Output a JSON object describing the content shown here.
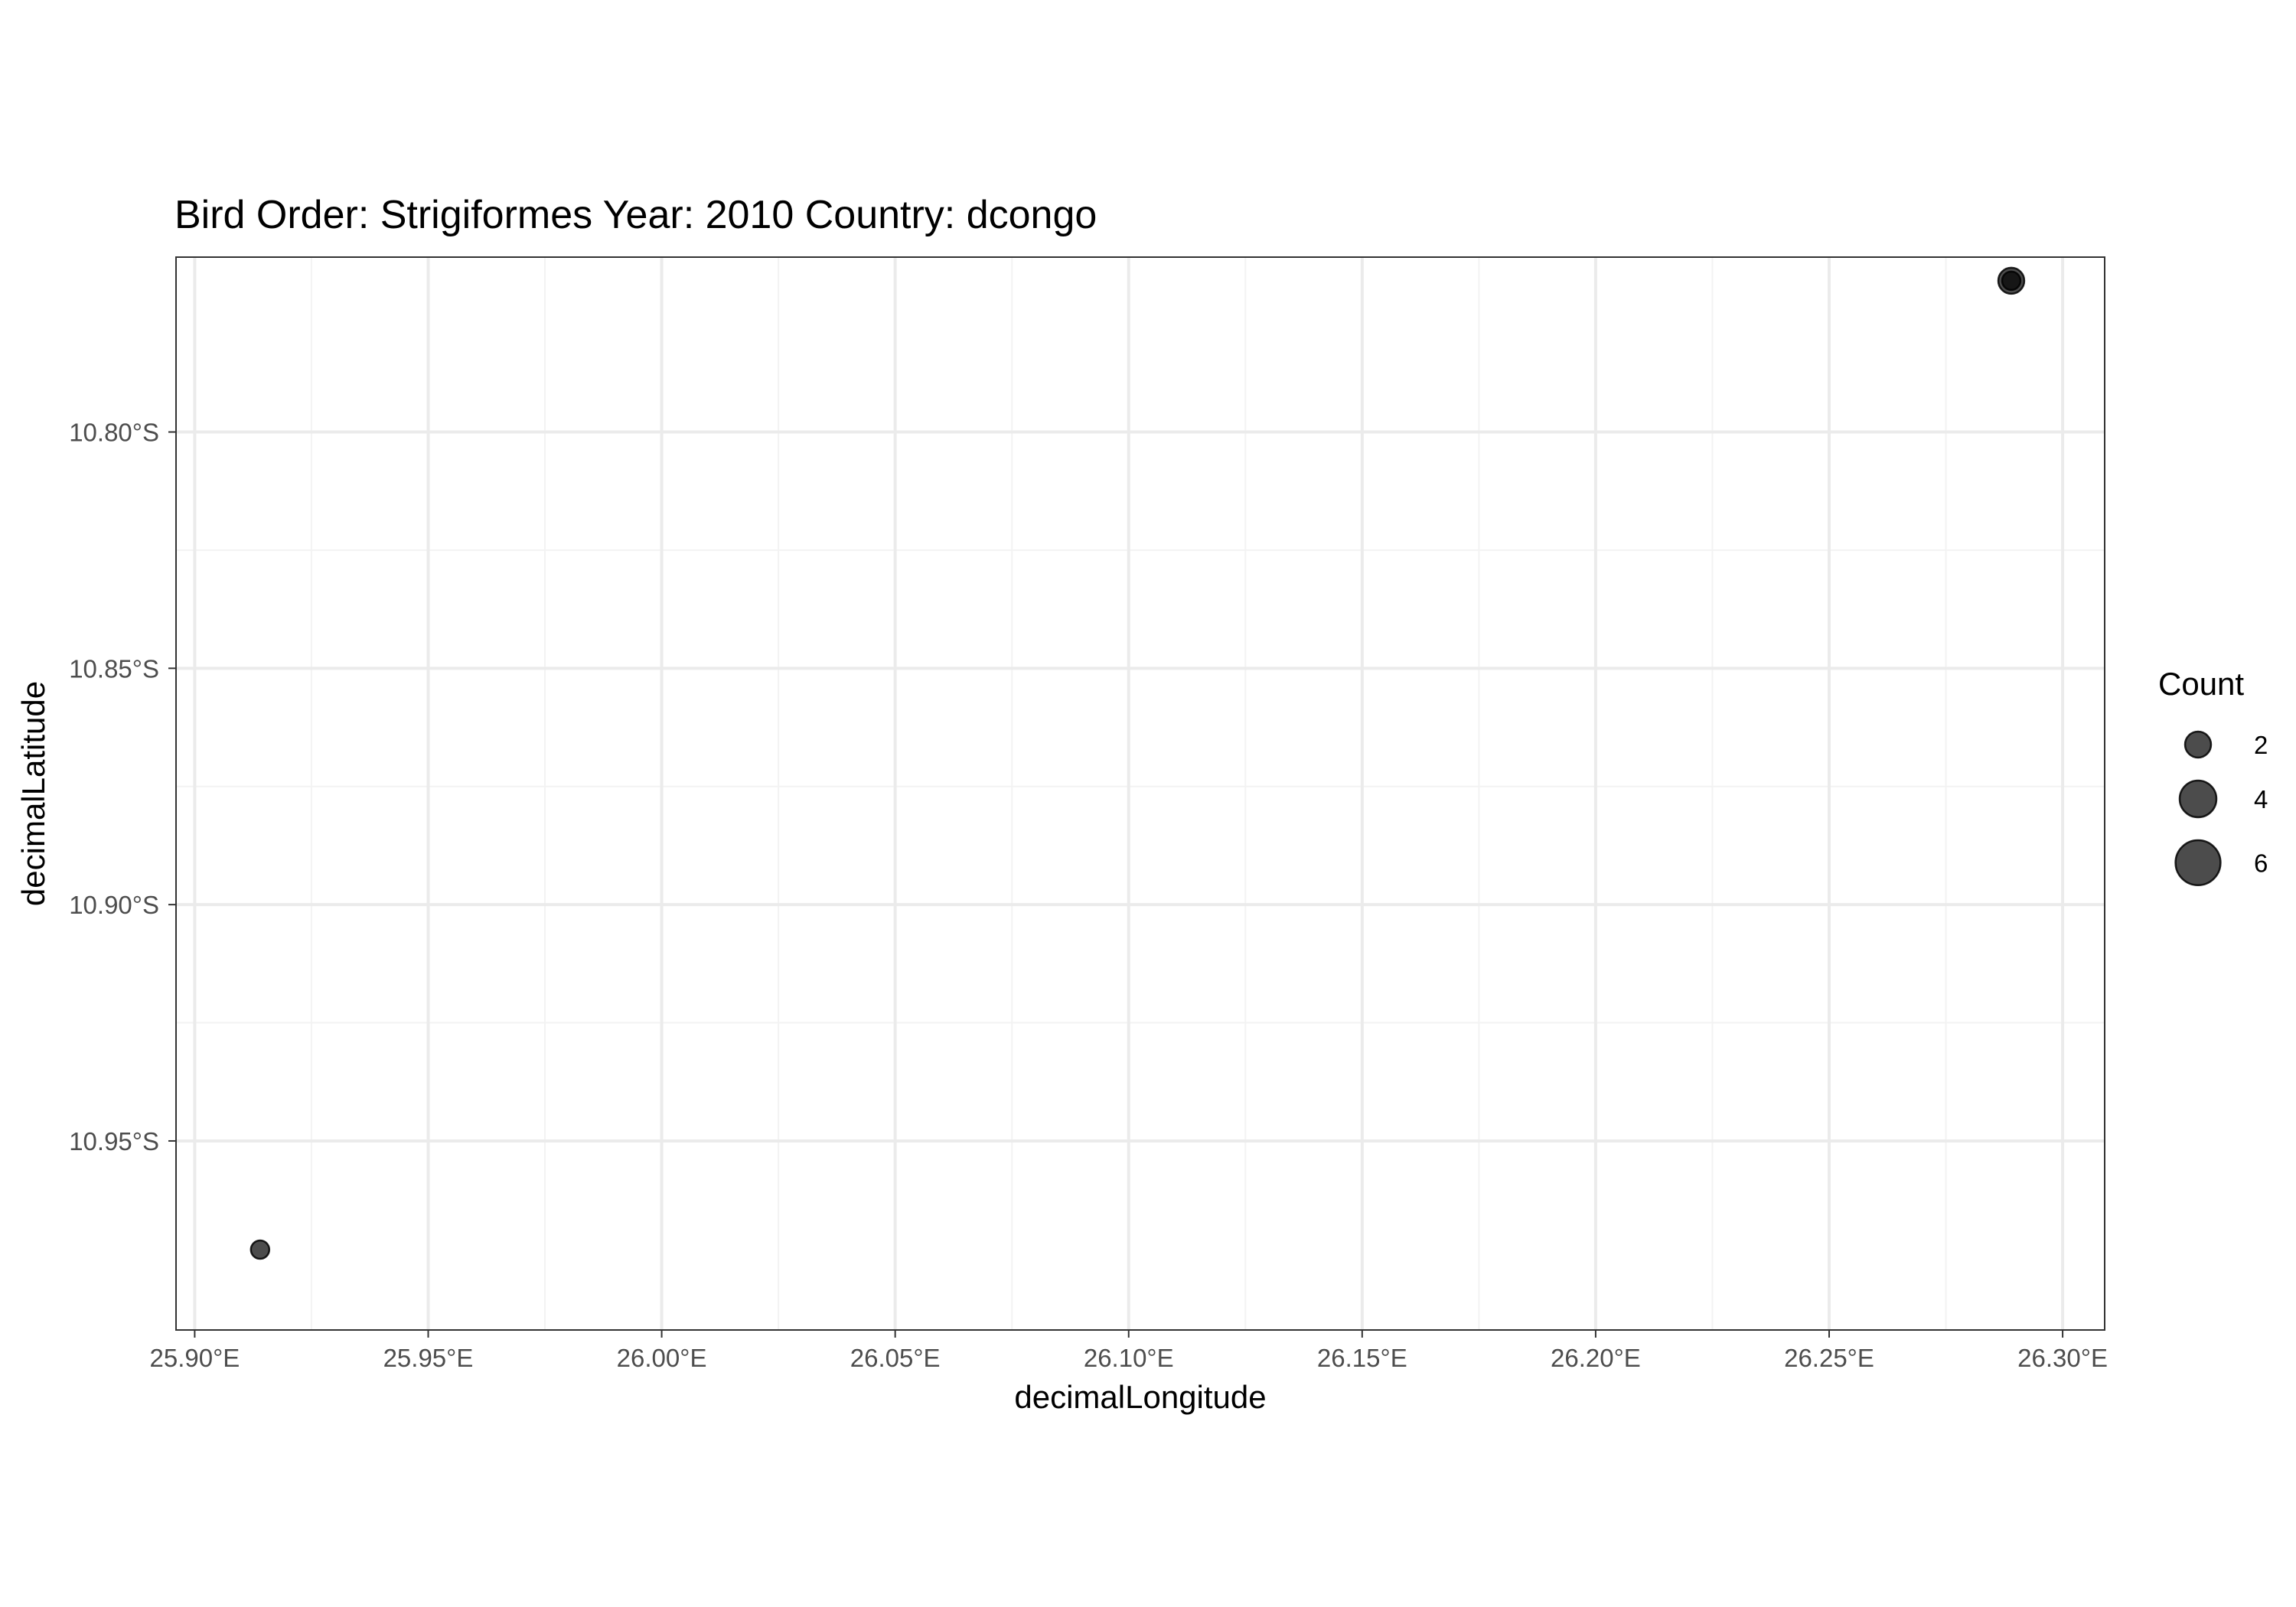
{
  "chart_data": {
    "type": "scatter",
    "title": "Bird Order: Strigiformes Year: 2010 Country: dcongo",
    "xlabel": "decimalLongitude",
    "ylabel": "decimalLatitude",
    "xlim": [
      25.896,
      26.309
    ],
    "ylim": [
      -10.99,
      -10.763
    ],
    "x_ticks": [
      {
        "value": 25.9,
        "label": "25.90°E"
      },
      {
        "value": 25.95,
        "label": "25.95°E"
      },
      {
        "value": 26.0,
        "label": "26.00°E"
      },
      {
        "value": 26.05,
        "label": "26.05°E"
      },
      {
        "value": 26.1,
        "label": "26.10°E"
      },
      {
        "value": 26.15,
        "label": "26.15°E"
      },
      {
        "value": 26.2,
        "label": "26.20°E"
      },
      {
        "value": 26.25,
        "label": "26.25°E"
      },
      {
        "value": 26.3,
        "label": "26.30°E"
      }
    ],
    "y_ticks": [
      {
        "value": -10.8,
        "label": "10.80°S"
      },
      {
        "value": -10.85,
        "label": "10.85°S"
      },
      {
        "value": -10.9,
        "label": "10.90°S"
      },
      {
        "value": -10.95,
        "label": "10.95°S"
      }
    ],
    "points": [
      {
        "x": 25.914,
        "y": -10.973,
        "count": 1
      },
      {
        "x": 26.289,
        "y": -10.768,
        "count": 2
      },
      {
        "x": 26.289,
        "y": -10.768,
        "count": 1
      }
    ],
    "grid": true,
    "point_color": "#000000",
    "point_opacity": 0.7,
    "legend": {
      "title": "Count",
      "position": "right",
      "entries": [
        {
          "value": 2,
          "label": "2"
        },
        {
          "value": 4,
          "label": "4"
        },
        {
          "value": 6,
          "label": "6"
        }
      ]
    }
  }
}
